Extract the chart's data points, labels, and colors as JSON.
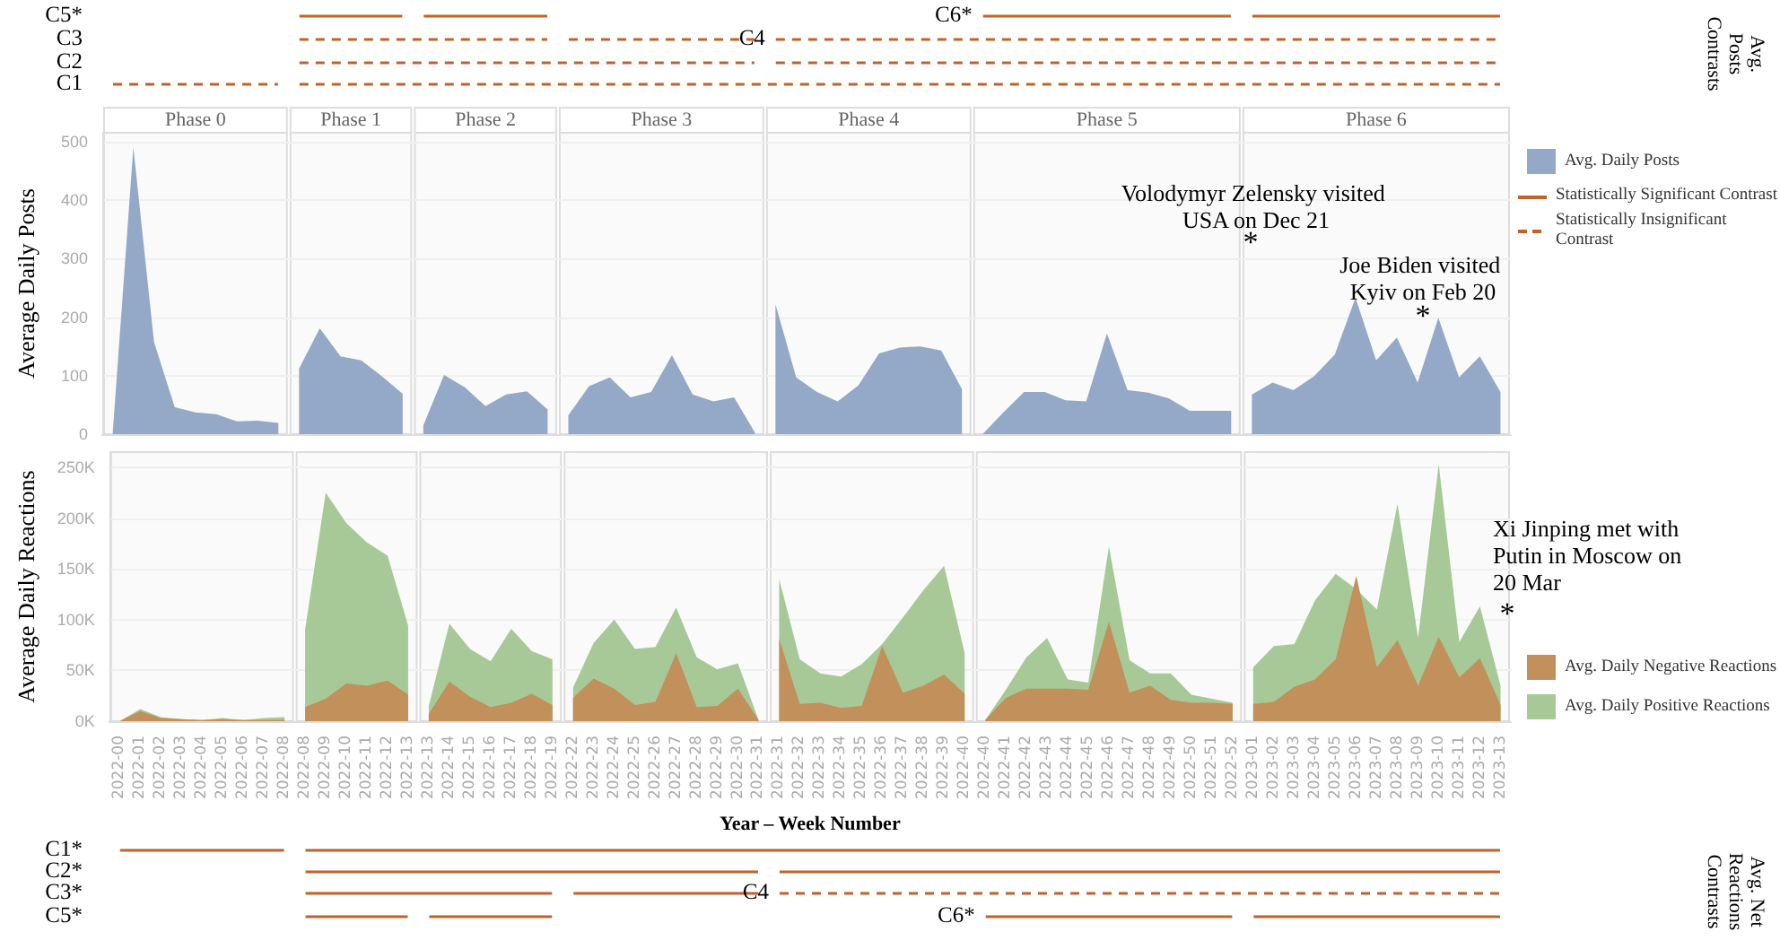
{
  "chart_data": [
    {
      "type": "area",
      "ylabel": "Average Daily Posts",
      "tick_labels": "y",
      "grid": "y",
      "legend": "top right",
      "categories": [
        "2022-00",
        "2022-01",
        "2022-02",
        "2022-03",
        "2022-04",
        "2022-05",
        "2022-06",
        "2022-07",
        "2022-08",
        "2022-08",
        "2022-09",
        "2022-10",
        "2022-11",
        "2022-12",
        "2022-13",
        "2022-13",
        "2022-14",
        "2022-15",
        "2022-16",
        "2022-17",
        "2022-18",
        "2022-19",
        "2022-22",
        "2022-23",
        "2022-24",
        "2022-25",
        "2022-26",
        "2022-27",
        "2022-28",
        "2022-29",
        "2022-30",
        "2022-31",
        "2022-31",
        "2022-32",
        "2022-33",
        "2022-34",
        "2022-35",
        "2022-36",
        "2022-37",
        "2022-38",
        "2022-39",
        "2022-40",
        "2022-40",
        "2022-41",
        "2022-42",
        "2022-43",
        "2022-44",
        "2022-45",
        "2022-46",
        "2022-47",
        "2022-48",
        "2022-49",
        "2022-50",
        "2022-51",
        "2022-52",
        "2023-01",
        "2023-02",
        "2023-03",
        "2023-04",
        "2023-05",
        "2023-06",
        "2023-07",
        "2023-08",
        "2023-09",
        "2023-10",
        "2023-11",
        "2023-12",
        "2023-13"
      ],
      "ylim": [
        0,
        515
      ],
      "yticks": [
        0,
        100,
        200,
        300,
        400,
        500
      ],
      "series": [
        {
          "name": "Avg. Daily Posts",
          "color": "#93a9c7",
          "values": [
            0,
            490,
            157,
            46,
            37,
            34,
            22,
            23,
            19,
            112,
            181,
            133,
            126,
            99,
            69,
            15,
            101,
            80,
            48,
            68,
            73,
            42,
            32,
            82,
            97,
            63,
            72,
            135,
            68,
            56,
            63,
            3,
            222,
            97,
            72,
            56,
            83,
            138,
            148,
            150,
            143,
            77,
            0,
            37,
            72,
            72,
            58,
            56,
            172,
            75,
            71,
            61,
            40,
            40,
            40,
            68,
            88,
            75,
            99,
            136,
            233,
            126,
            165,
            88,
            199,
            97,
            133,
            72
          ]
        }
      ],
      "bands": [
        {
          "axis": "x",
          "from": "2022-00",
          "to": "2022-08",
          "label": "Phase 0",
          "color": "#fafafa"
        },
        {
          "axis": "x",
          "from": "2022-08",
          "to": "2022-13",
          "label": "Phase 1",
          "color": "#fafafa"
        },
        {
          "axis": "x",
          "from": "2022-13",
          "to": "2022-19",
          "label": "Phase 2",
          "color": "#fafafa"
        },
        {
          "axis": "x",
          "from": "2022-22",
          "to": "2022-31",
          "label": "Phase 3",
          "color": "#fafafa"
        },
        {
          "axis": "x",
          "from": "2022-31",
          "to": "2022-40",
          "label": "Phase 4",
          "color": "#fafafa"
        },
        {
          "axis": "x",
          "from": "2022-40",
          "to": "2022-52",
          "label": "Phase 5",
          "color": "#fafafa"
        },
        {
          "axis": "x",
          "from": "2023-01",
          "to": "2023-13",
          "label": "Phase 6",
          "color": "#fafafa"
        }
      ],
      "annotations": [
        "C5*",
        "C3",
        "C2",
        "C1",
        "C6*",
        "C4",
        "Avg. Posts Contrasts",
        "Statistically Significant Contrast",
        "Statistically Insignificant Contrast",
        "Volodymyr Zelensky visited USA on Dec 21",
        "*",
        "Joe Biden visited Kyiv on Feb 20",
        "*"
      ]
    },
    {
      "type": "area",
      "ylabel": "Average Daily Reactions",
      "xlabel": "Year – Week Number",
      "grid": "y",
      "legend": "right",
      "categories": [
        "2022-00",
        "2022-01",
        "2022-02",
        "2022-03",
        "2022-04",
        "2022-05",
        "2022-06",
        "2022-07",
        "2022-08",
        "2022-08",
        "2022-09",
        "2022-10",
        "2022-11",
        "2022-12",
        "2022-13",
        "2022-13",
        "2022-14",
        "2022-15",
        "2022-16",
        "2022-17",
        "2022-18",
        "2022-19",
        "2022-22",
        "2022-23",
        "2022-24",
        "2022-25",
        "2022-26",
        "2022-27",
        "2022-28",
        "2022-29",
        "2022-30",
        "2022-31",
        "2022-31",
        "2022-32",
        "2022-33",
        "2022-34",
        "2022-35",
        "2022-36",
        "2022-37",
        "2022-38",
        "2022-39",
        "2022-40",
        "2022-40",
        "2022-41",
        "2022-42",
        "2022-43",
        "2022-44",
        "2022-45",
        "2022-46",
        "2022-47",
        "2022-48",
        "2022-49",
        "2022-50",
        "2022-51",
        "2022-52",
        "2023-01",
        "2023-02",
        "2023-03",
        "2023-04",
        "2023-05",
        "2023-06",
        "2023-07",
        "2023-08",
        "2023-09",
        "2023-10",
        "2023-11",
        "2023-12",
        "2023-13"
      ],
      "ylim": [
        0,
        265
      ],
      "yticks": [
        {
          "value": 0,
          "label": "0K"
        },
        {
          "value": 50,
          "label": "50K"
        },
        {
          "value": 100,
          "label": "100K"
        },
        {
          "value": 150,
          "label": "150K"
        },
        {
          "value": 200,
          "label": "200K"
        },
        {
          "value": 250,
          "label": "250K"
        }
      ],
      "series": [
        {
          "name": "Avg. Daily Negative Reactions",
          "color": "#c2905a",
          "values": [
            0,
            10,
            3,
            2,
            1,
            2,
            1,
            1,
            1,
            14,
            22,
            37,
            35,
            40,
            26,
            7,
            39,
            24,
            14,
            18,
            27,
            16,
            23,
            42,
            32,
            16,
            19,
            67,
            14,
            15,
            32,
            1,
            81,
            17,
            18,
            13,
            15,
            74,
            28,
            35,
            46,
            27,
            1,
            23,
            32,
            32,
            32,
            31,
            98,
            28,
            35,
            21,
            18,
            18,
            17,
            17,
            19,
            34,
            41,
            61,
            143,
            53,
            80,
            35,
            83,
            43,
            62,
            16
          ]
        },
        {
          "name": "Avg. Daily Positive Reactions",
          "color": "#a6c997",
          "values": [
            0,
            12,
            4,
            2,
            1,
            3,
            1,
            3,
            4,
            90,
            225,
            195,
            176,
            163,
            94,
            15,
            96,
            71,
            59,
            91,
            69,
            61,
            33,
            77,
            100,
            71,
            73,
            112,
            63,
            51,
            57,
            1,
            140,
            61,
            47,
            44,
            56,
            76,
            102,
            129,
            153,
            67,
            1,
            31,
            63,
            82,
            41,
            38,
            172,
            60,
            47,
            47,
            26,
            22,
            18,
            53,
            74,
            76,
            119,
            145,
            130,
            110,
            214,
            82,
            253,
            78,
            113,
            35
          ]
        }
      ],
      "bands": [
        {
          "axis": "x",
          "from": "2022-00",
          "to": "2022-08",
          "color": "#fafafa"
        },
        {
          "axis": "x",
          "from": "2022-08",
          "to": "2022-13",
          "color": "#fafafa"
        },
        {
          "axis": "x",
          "from": "2022-13",
          "to": "2022-19",
          "color": "#fafafa"
        },
        {
          "axis": "x",
          "from": "2022-22",
          "to": "2022-31",
          "color": "#fafafa"
        },
        {
          "axis": "x",
          "from": "2022-31",
          "to": "2022-40",
          "color": "#fafafa"
        },
        {
          "axis": "x",
          "from": "2022-40",
          "to": "2022-52",
          "color": "#fafafa"
        },
        {
          "axis": "x",
          "from": "2023-01",
          "to": "2023-13",
          "color": "#fafafa"
        }
      ],
      "annotations": [
        "C1*",
        "C2*",
        "C3*",
        "C5*",
        "C4",
        "C6*",
        "Avg. Net Reactions Contrasts",
        "Xi Jinping met with Putin in Moscow on 20 Mar",
        "*"
      ]
    }
  ]
}
